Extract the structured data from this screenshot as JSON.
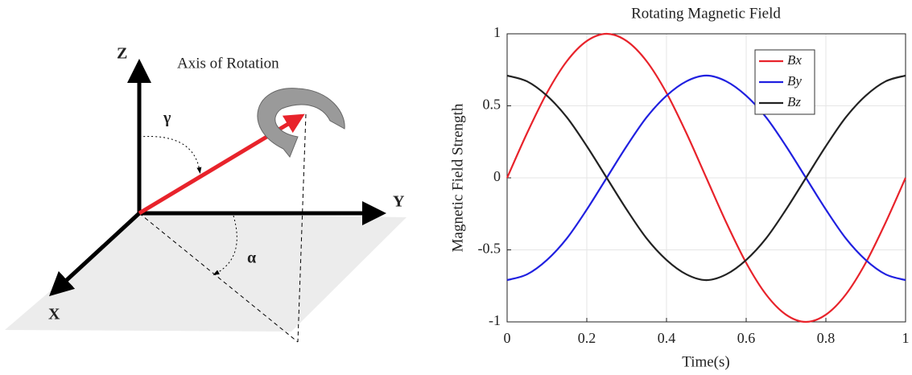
{
  "diagram": {
    "z_label": "Z",
    "y_label": "Y",
    "x_label": "X",
    "rotation_label": "Axis of Rotation",
    "gamma_label": "γ",
    "alpha_label": "α"
  },
  "chart_data": {
    "type": "line",
    "title": "Rotating Magnetic Field",
    "x_label": "Time(s)",
    "y_label": "Magnetic Field Strength",
    "x": [
      0,
      0.05,
      0.1,
      0.15,
      0.2,
      0.25,
      0.3,
      0.35,
      0.4,
      0.45,
      0.5,
      0.55,
      0.6,
      0.65,
      0.7,
      0.75,
      0.8,
      0.85,
      0.9,
      0.95,
      1
    ],
    "series": [
      {
        "name": "Bx",
        "color": "#e8232b",
        "values": [
          0,
          0.31,
          0.59,
          0.81,
          0.95,
          1,
          0.95,
          0.81,
          0.59,
          0.31,
          0,
          -0.31,
          -0.59,
          -0.81,
          -0.95,
          -1,
          -0.95,
          -0.81,
          -0.59,
          -0.31,
          0
        ]
      },
      {
        "name": "By",
        "color": "#2020e0",
        "values": [
          -0.71,
          -0.67,
          -0.57,
          -0.42,
          -0.22,
          0,
          0.22,
          0.42,
          0.57,
          0.67,
          0.71,
          0.67,
          0.57,
          0.42,
          0.22,
          0,
          -0.22,
          -0.42,
          -0.57,
          -0.67,
          -0.71
        ]
      },
      {
        "name": "Bz",
        "color": "#222222",
        "values": [
          0.71,
          0.67,
          0.57,
          0.42,
          0.22,
          0,
          -0.22,
          -0.42,
          -0.57,
          -0.67,
          -0.71,
          -0.67,
          -0.57,
          -0.42,
          -0.22,
          0,
          0.22,
          0.42,
          0.57,
          0.67,
          0.71
        ]
      }
    ],
    "xlim": [
      0,
      1
    ],
    "xticks": [
      0,
      0.2,
      0.4,
      0.6,
      0.8,
      1
    ],
    "ylim": [
      -1,
      1
    ],
    "yticks": [
      -1,
      -0.5,
      0,
      0.5,
      1
    ],
    "grid": true,
    "legend": "upper-right"
  }
}
